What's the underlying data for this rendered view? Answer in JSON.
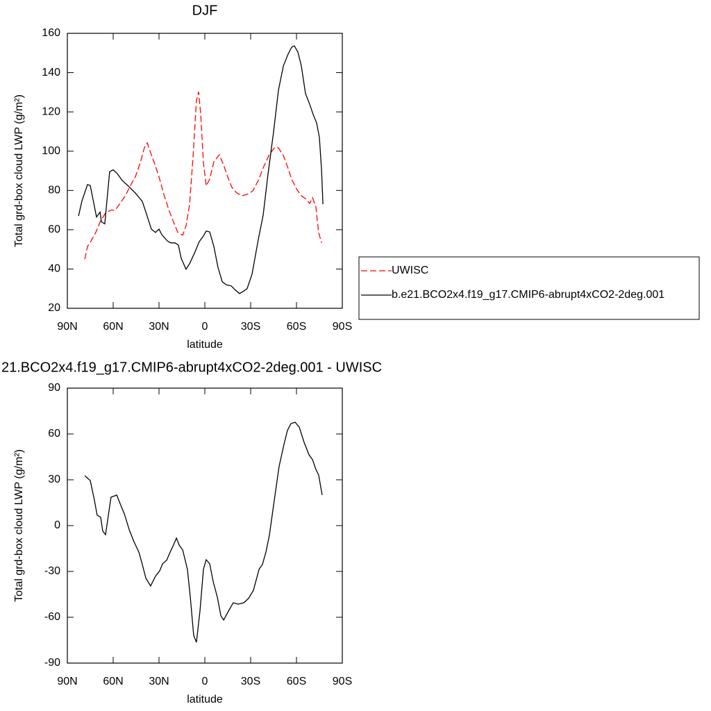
{
  "chart_data": [
    {
      "type": "line",
      "title": "DJF",
      "xlabel": "latitude",
      "ylabel": "Total grd-box cloud LWP (g/m²)",
      "xlim": [
        90,
        -90
      ],
      "xticks": [
        {
          "value": 90,
          "label": "90N"
        },
        {
          "value": 60,
          "label": "60N"
        },
        {
          "value": 30,
          "label": "30N"
        },
        0,
        {
          "value": -30,
          "label": "30S"
        },
        {
          "value": -60,
          "label": "60S"
        },
        {
          "value": -90,
          "label": "90S"
        }
      ],
      "ylim": [
        20,
        160
      ],
      "yticks": [
        20,
        40,
        60,
        80,
        100,
        120,
        140,
        160
      ],
      "legend_position": "right",
      "series": [
        {
          "name": "UWISC",
          "color": "#ff0000",
          "dashed": true,
          "x": [
            78.6,
            76.8,
            74.5,
            71.4,
            68.2,
            65,
            61.4,
            58.6,
            56.4,
            52.3,
            48.2,
            45.5,
            42.3,
            39.5,
            37.7,
            35.5,
            32.7,
            30,
            26.8,
            23.6,
            20.5,
            17.7,
            14.5,
            12.3,
            10,
            7.7,
            5.5,
            4.1,
            2.7,
            0.9,
            -0.9,
            -3.2,
            -5.9,
            -9.5,
            -12.3,
            -15,
            -17.7,
            -20.9,
            -24.5,
            -27.7,
            -31.4,
            -35,
            -38.6,
            -42.3,
            -45.9,
            -48.2,
            -51.4,
            -54.1,
            -56.8,
            -60,
            -63.2,
            -66.4,
            -68.6,
            -70.5,
            -72.7,
            -74.5,
            -76.4
          ],
          "values": [
            45,
            51.5,
            54.3,
            58.6,
            64.6,
            68.5,
            70,
            70,
            72.4,
            77,
            83.3,
            86.9,
            94,
            102,
            104.2,
            99.2,
            93.2,
            86.9,
            78,
            70.2,
            63.9,
            58.6,
            57.2,
            62,
            72.7,
            97.5,
            125.7,
            130.3,
            118.7,
            94,
            82.3,
            85.8,
            94.6,
            98.2,
            92.9,
            86.9,
            81.6,
            78.7,
            77.3,
            78,
            79.8,
            85.1,
            92.2,
            98.5,
            102,
            101.7,
            97.8,
            92.2,
            85.8,
            80.8,
            77.3,
            75.5,
            73.4,
            76.3,
            71.7,
            58.6,
            53.3
          ]
        },
        {
          "name": "b.e21.BCO2x4.f19_g17.CMIP6-abrupt4xCO2-2deg.001",
          "color": "#000000",
          "dashed": false,
          "x": [
            82.7,
            80.5,
            76.8,
            75,
            70.9,
            68.6,
            67.7,
            65.5,
            62.3,
            60,
            57.3,
            54,
            50,
            45.5,
            41,
            38.6,
            36.8,
            35,
            32.3,
            30,
            28.2,
            24.5,
            22.3,
            19.5,
            17.3,
            15.5,
            12.3,
            10,
            6.8,
            3.6,
            0.9,
            -0.9,
            -3.2,
            -5.9,
            -8.6,
            -11.4,
            -14,
            -17.3,
            -19.5,
            -22.7,
            -25,
            -27.7,
            -30.9,
            -35,
            -38.2,
            -41.4,
            -45,
            -48.2,
            -51.4,
            -54.5,
            -56.8,
            -58.6,
            -60.9,
            -63.2,
            -65.9,
            -68.6,
            -70.9,
            -73.2,
            -75,
            -76.4,
            -77.3
          ],
          "values": [
            67,
            74.5,
            83,
            82.5,
            66.5,
            69,
            64,
            63,
            89.5,
            90.5,
            88.6,
            85,
            82.2,
            78.7,
            74.5,
            69,
            64.6,
            60.3,
            58.6,
            60.3,
            57.5,
            54.3,
            53.3,
            53.3,
            52.2,
            45.5,
            39.9,
            42.7,
            48,
            54,
            56.8,
            59.3,
            58.9,
            51.5,
            40.9,
            33.5,
            32,
            31.4,
            29.6,
            27.5,
            28.5,
            30,
            37.4,
            55,
            67.4,
            88.6,
            109.8,
            131,
            143.4,
            149.4,
            152.9,
            153.6,
            150.5,
            143.4,
            129.3,
            124,
            118.7,
            114.4,
            107,
            90.4,
            73
          ]
        }
      ]
    },
    {
      "type": "line",
      "title": "21.BCO2x4.f19_g17.CMIP6-abrupt4xCO2-2deg.001 - UWISC",
      "xlabel": "latitude",
      "ylabel": "Total grd-box cloud LWP (g/m²)",
      "xlim": [
        90,
        -90
      ],
      "xticks": [
        {
          "value": 90,
          "label": "90N"
        },
        {
          "value": 60,
          "label": "60N"
        },
        {
          "value": 30,
          "label": "30N"
        },
        0,
        {
          "value": -30,
          "label": "30S"
        },
        {
          "value": -60,
          "label": "60S"
        },
        {
          "value": -90,
          "label": "90S"
        }
      ],
      "ylim": [
        -90,
        90
      ],
      "yticks": [
        -90,
        -60,
        -30,
        0,
        30,
        60,
        90
      ],
      "series": [
        {
          "color": "#000000",
          "dashed": false,
          "x": [
            78.6,
            75,
            72.3,
            70.5,
            68.2,
            66.8,
            65,
            62.7,
            61.4,
            57.7,
            55.9,
            52.7,
            49.5,
            46.4,
            43.2,
            40.9,
            38.6,
            35.5,
            32.3,
            29.5,
            27.7,
            25,
            22.7,
            20.5,
            18.6,
            16.8,
            14.5,
            11.4,
            9.5,
            7.3,
            5.5,
            3.2,
            0.9,
            -0.9,
            -3.2,
            -5.5,
            -8.2,
            -10.5,
            -12.3,
            -15.5,
            -18.6,
            -21.8,
            -25.5,
            -28.6,
            -31.8,
            -35.5,
            -37.7,
            -40,
            -42.3,
            -45.5,
            -48.6,
            -51.8,
            -54.1,
            -56.4,
            -59.1,
            -61.8,
            -65,
            -68.2,
            -70.5,
            -72.7,
            -74.5,
            -76.8
          ],
          "values": [
            32.7,
            29.5,
            16.8,
            6.8,
            5.5,
            -3.6,
            -5.9,
            10,
            18.6,
            20,
            15.5,
            7.7,
            -2.7,
            -10.5,
            -17.3,
            -25.5,
            -34.5,
            -39.5,
            -33.2,
            -29.5,
            -25,
            -22.7,
            -17.3,
            -12.7,
            -8.2,
            -12.7,
            -15.9,
            -28.6,
            -46.8,
            -71.8,
            -76.4,
            -55.9,
            -28.6,
            -22.3,
            -25,
            -36.8,
            -46.8,
            -59,
            -61.8,
            -55.9,
            -50.5,
            -51.4,
            -50.5,
            -47.7,
            -42.3,
            -28.6,
            -25.5,
            -17.3,
            -5.9,
            16.8,
            38.6,
            53.2,
            62.3,
            66.8,
            67.7,
            64.5,
            54.5,
            46.4,
            43.2,
            36.8,
            33.2,
            20
          ]
        }
      ]
    }
  ]
}
